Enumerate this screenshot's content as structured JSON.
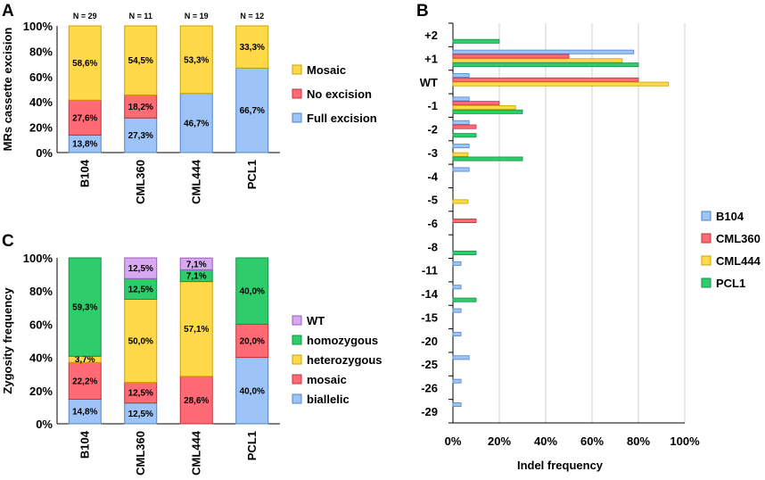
{
  "colors": {
    "Mosaic": "#FFD94A",
    "No excision": "#FF6B75",
    "Full excision": "#9DC3F7",
    "WT": "#D8A8F0",
    "homozygous": "#2ECC6A",
    "heterozygous": "#FFD94A",
    "mosaic": "#FF6B75",
    "biallelic": "#9DC3F7",
    "B104": "#9DC3F7",
    "CML360": "#FF6B75",
    "CML444": "#FFD94A",
    "PCL1": "#2ECC6A"
  },
  "chart_data": [
    {
      "panel": "A",
      "type": "bar",
      "stacked": true,
      "categories": [
        "B104",
        "CML360",
        "CML444",
        "PCL1"
      ],
      "n_labels": [
        "N = 29",
        "N = 11",
        "N = 19",
        "N = 12"
      ],
      "series": [
        {
          "name": "Full excision",
          "values": [
            13.8,
            27.3,
            46.7,
            66.7
          ],
          "labels": [
            "13,8%",
            "27,3%",
            "46,7%",
            "66,7%"
          ]
        },
        {
          "name": "No excision",
          "values": [
            27.6,
            18.2,
            0,
            0
          ],
          "labels": [
            "27,6%",
            "18,2%",
            "",
            ""
          ]
        },
        {
          "name": "Mosaic",
          "values": [
            58.6,
            54.5,
            53.3,
            33.3
          ],
          "labels": [
            "58,6%",
            "54,5%",
            "53,3%",
            "33,3%"
          ]
        }
      ],
      "legend_order": [
        "Mosaic",
        "No excision",
        "Full excision"
      ],
      "ylabel": "MRs cassette excision",
      "ylim": [
        0,
        100
      ],
      "yticks": [
        "0%",
        "20%",
        "40%",
        "60%",
        "80%",
        "100%"
      ]
    },
    {
      "panel": "C",
      "type": "bar",
      "stacked": true,
      "categories": [
        "B104",
        "CML360",
        "CML444",
        "PCL1"
      ],
      "series": [
        {
          "name": "biallelic",
          "values": [
            14.8,
            12.5,
            0,
            40.0
          ],
          "labels": [
            "14,8%",
            "12,5%",
            "",
            "40,0%"
          ]
        },
        {
          "name": "mosaic",
          "values": [
            22.2,
            12.5,
            28.6,
            20.0
          ],
          "labels": [
            "22,2%",
            "12,5%",
            "28,6%",
            "20,0%"
          ]
        },
        {
          "name": "heterozygous",
          "values": [
            3.7,
            50.0,
            57.1,
            0
          ],
          "labels": [
            "3,7%",
            "50,0%",
            "57,1%",
            ""
          ]
        },
        {
          "name": "homozygous",
          "values": [
            59.3,
            12.5,
            7.1,
            40.0
          ],
          "labels": [
            "59,3%",
            "12,5%",
            "7,1%",
            "40,0%"
          ]
        },
        {
          "name": "WT",
          "values": [
            0,
            12.5,
            7.1,
            0
          ],
          "labels": [
            "",
            "12,5%",
            "7,1%",
            ""
          ]
        }
      ],
      "legend_order": [
        "WT",
        "homozygous",
        "heterozygous",
        "mosaic",
        "biallelic"
      ],
      "ylabel": "Zygosity frequency",
      "ylim": [
        0,
        100
      ],
      "yticks": [
        "0%",
        "20%",
        "40%",
        "60%",
        "80%",
        "100%"
      ]
    },
    {
      "panel": "B",
      "type": "bar",
      "orientation": "horizontal",
      "categories": [
        "+2",
        "+1",
        "WT",
        "-1",
        "-2",
        "-3",
        "-4",
        "-5",
        "-6",
        "-8",
        "-11",
        "-14",
        "-15",
        "-20",
        "-25",
        "-26",
        "-29"
      ],
      "series": [
        {
          "name": "B104",
          "values": [
            0,
            78,
            7,
            7,
            7,
            7,
            7,
            0,
            0,
            0,
            3.5,
            3.5,
            3.5,
            3.5,
            7,
            3.5,
            3.5
          ]
        },
        {
          "name": "CML360",
          "values": [
            0,
            50,
            80,
            20,
            10,
            0,
            0,
            0,
            10,
            0,
            0,
            0,
            0,
            0,
            0,
            0,
            0
          ]
        },
        {
          "name": "CML444",
          "values": [
            0,
            73,
            93,
            27,
            0,
            6.5,
            0,
            6.5,
            0,
            0,
            0,
            0,
            0,
            0,
            0,
            0,
            0
          ]
        },
        {
          "name": "PCL1",
          "values": [
            20,
            80,
            0,
            30,
            10,
            30,
            0,
            0,
            0,
            10,
            0,
            10,
            0,
            0,
            0,
            0,
            0
          ]
        }
      ],
      "legend_order": [
        "B104",
        "CML360",
        "CML444",
        "PCL1"
      ],
      "xlabel": "Indel frequency",
      "xlim": [
        0,
        100
      ],
      "xticks": [
        "0%",
        "20%",
        "40%",
        "60%",
        "80%",
        "100%"
      ]
    }
  ],
  "panel_letters": {
    "A": "A",
    "B": "B",
    "C": "C"
  }
}
